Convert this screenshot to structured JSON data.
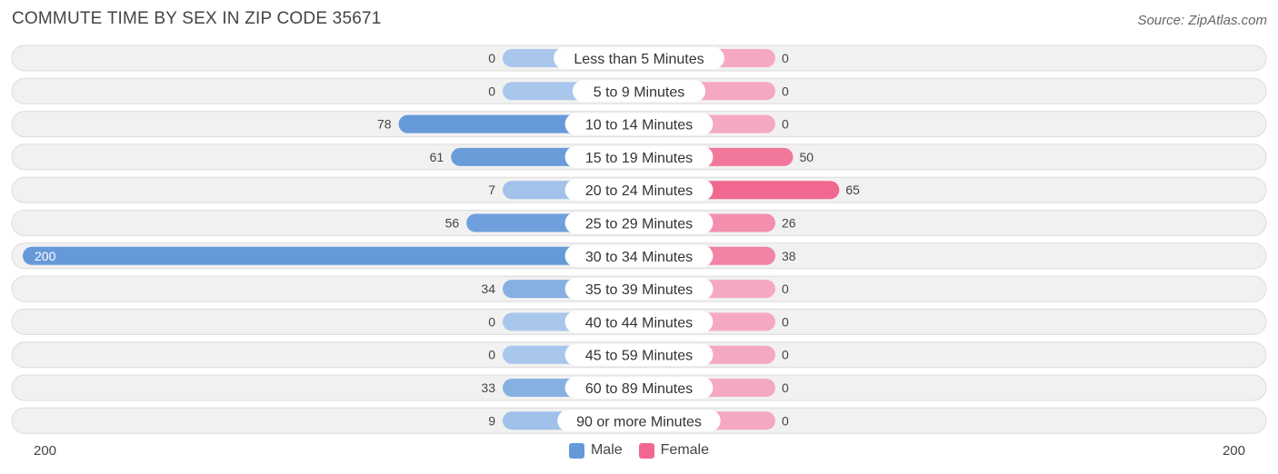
{
  "header": {
    "title": "COMMUTE TIME BY SEX IN ZIP CODE 35671",
    "source": "Source: ZipAtlas.com"
  },
  "axis": {
    "left_label": "200",
    "right_label": "200"
  },
  "legend": {
    "male_label": "Male",
    "female_label": "Female"
  },
  "colors": {
    "male_strong": "#6699d9",
    "male_light": "#a9c7ec",
    "female_strong": "#f06890",
    "female_light": "#f5a9c0",
    "row_bg": "#f1f1f1",
    "row_border": "#dcdcdc"
  },
  "chart_data": {
    "type": "bar",
    "orientation": "horizontal-diverging",
    "title": "COMMUTE TIME BY SEX IN ZIP CODE 35671",
    "xlim": [
      -200,
      200
    ],
    "categories": [
      "Less than 5 Minutes",
      "5 to 9 Minutes",
      "10 to 14 Minutes",
      "15 to 19 Minutes",
      "20 to 24 Minutes",
      "25 to 29 Minutes",
      "30 to 34 Minutes",
      "35 to 39 Minutes",
      "40 to 44 Minutes",
      "45 to 59 Minutes",
      "60 to 89 Minutes",
      "90 or more Minutes"
    ],
    "series": [
      {
        "name": "Male",
        "values": [
          0,
          0,
          78,
          61,
          7,
          56,
          200,
          34,
          0,
          0,
          33,
          9
        ]
      },
      {
        "name": "Female",
        "values": [
          0,
          0,
          0,
          50,
          65,
          26,
          38,
          0,
          0,
          0,
          0,
          0
        ]
      }
    ],
    "legend_position": "bottom-center"
  }
}
